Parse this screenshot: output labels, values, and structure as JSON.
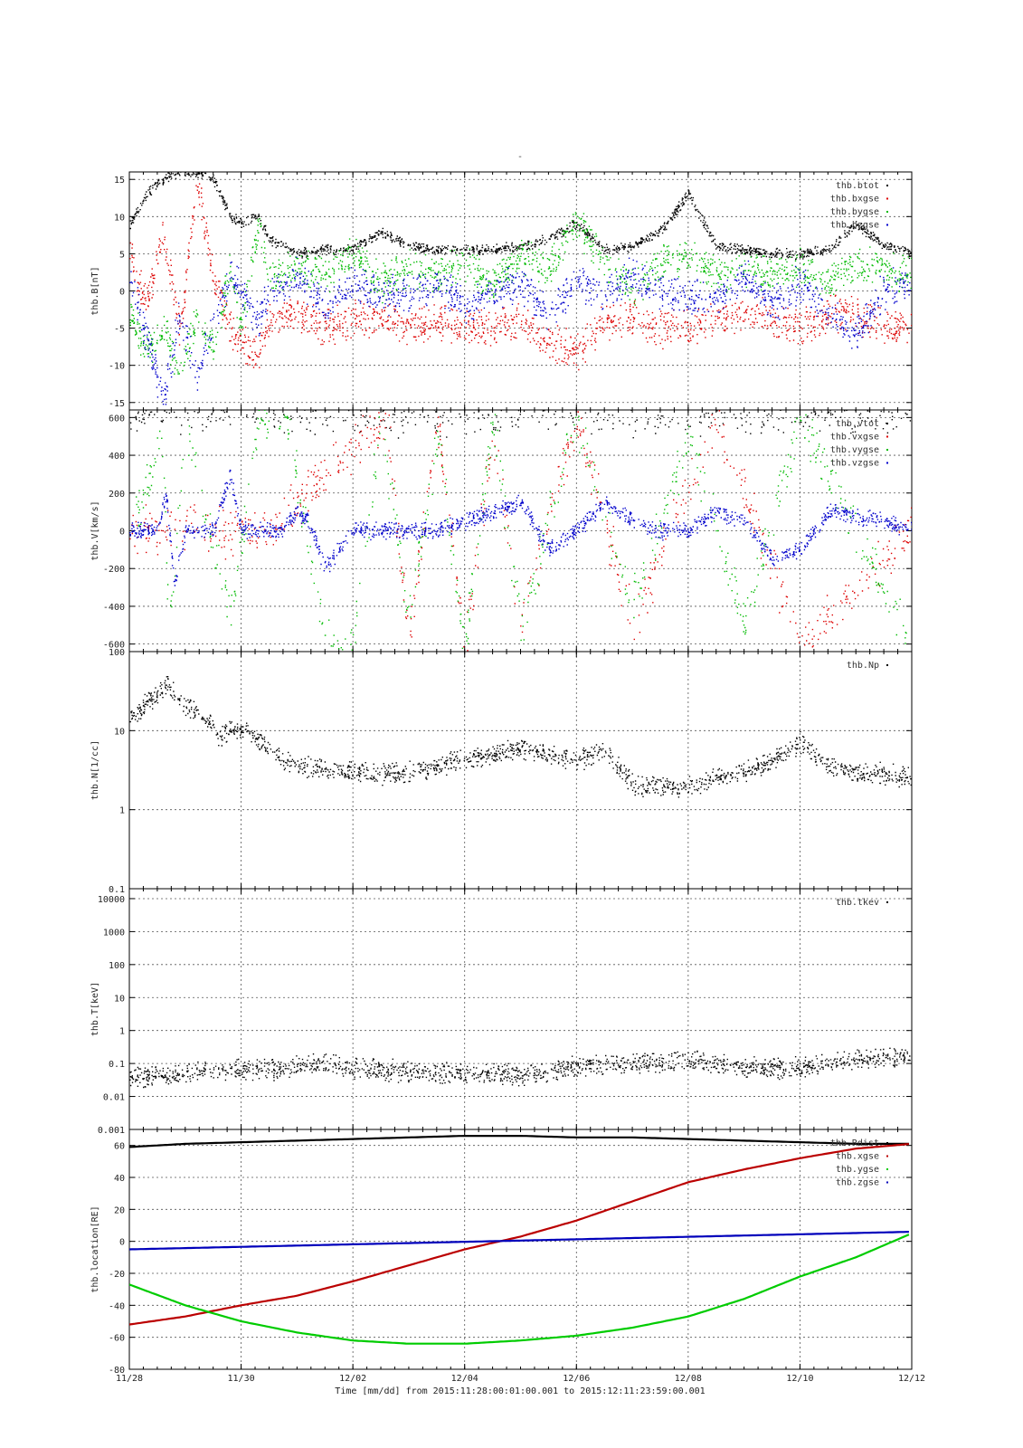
{
  "title": "-",
  "footer": "Time [mm/dd]  from 2015:11:28:00:01:00.001  to  2015:12:11:23:59:00.001",
  "x_ticks": [
    "11/28",
    "11/30",
    "12/02",
    "12/04",
    "12/06",
    "12/08",
    "12/10",
    "12/12"
  ],
  "chart_data": [
    {
      "type": "scatter",
      "ylabel": "thb.B[nT]",
      "ylim": [
        -16,
        16
      ],
      "yticks": [
        "15",
        "10",
        "5",
        "0",
        "-5",
        "-10",
        "-15"
      ],
      "series": [
        {
          "name": "thb.btot",
          "color": "#000000",
          "x": [
            0,
            0.3,
            0.6,
            0.9,
            1.2,
            1.5,
            1.8,
            2,
            2.3,
            2.5,
            3,
            3.5,
            4,
            4.5,
            5,
            5.5,
            6,
            6.5,
            7,
            7.5,
            8,
            8.5,
            9,
            9.5,
            10,
            10.5,
            11,
            11.5,
            12,
            12.5,
            13,
            13.5,
            14
          ],
          "values": [
            9,
            13,
            15,
            16,
            16,
            15,
            10,
            9,
            10,
            7,
            5,
            5.5,
            5.5,
            8,
            6,
            5.5,
            5.5,
            5.5,
            6,
            7,
            9,
            5.5,
            6,
            8,
            13,
            6,
            5.5,
            5,
            5,
            5.5,
            9,
            6,
            5
          ]
        },
        {
          "name": "thb.bxgse",
          "color": "#dd0000",
          "x": [
            0,
            0.3,
            0.6,
            0.9,
            1.2,
            1.5,
            1.8,
            2,
            2.3,
            2.5,
            3,
            3.5,
            4,
            4.5,
            5,
            5.5,
            6,
            6.5,
            7,
            7.5,
            8,
            8.5,
            9,
            9.5,
            10,
            10.5,
            11,
            11.5,
            12,
            12.5,
            13,
            13.5,
            14
          ],
          "values": [
            5,
            -2,
            8,
            -6,
            15,
            2,
            -5,
            -7,
            -9,
            -4,
            -3,
            -5,
            -4,
            -4,
            -5,
            -4,
            -5,
            -5,
            -4,
            -7,
            -8,
            -4,
            -4,
            -5,
            -5,
            -4,
            -3,
            -4,
            -5,
            -3,
            -3,
            -5,
            -5
          ]
        },
        {
          "name": "thb.bygse",
          "color": "#00bb00",
          "x": [
            0,
            0.3,
            0.6,
            0.9,
            1.2,
            1.5,
            1.8,
            2,
            2.3,
            2.5,
            3,
            3.5,
            4,
            4.5,
            5,
            5.5,
            6,
            6.5,
            7,
            7.5,
            8,
            8.5,
            9,
            9.5,
            10,
            10.5,
            11,
            11.5,
            12,
            12.5,
            13,
            13.5,
            14
          ],
          "values": [
            -3,
            -8,
            -5,
            -11,
            -4,
            -8,
            3,
            -5,
            9,
            2,
            3,
            2,
            5,
            1,
            3,
            2,
            4,
            1,
            5,
            3,
            9,
            4,
            0,
            4,
            5,
            2,
            3,
            2,
            3,
            1,
            4,
            3,
            2
          ]
        },
        {
          "name": "thb.bzgse",
          "color": "#0000cc",
          "x": [
            0,
            0.3,
            0.6,
            0.9,
            1.2,
            1.5,
            1.8,
            2,
            2.3,
            2.5,
            3,
            3.5,
            4,
            4.5,
            5,
            5.5,
            6,
            6.5,
            7,
            7.5,
            8,
            8.5,
            9,
            9.5,
            10,
            10.5,
            11,
            11.5,
            12,
            12.5,
            13,
            13.5,
            14
          ],
          "values": [
            2,
            -6,
            -15,
            -3,
            -12,
            -4,
            2,
            0,
            -4,
            0,
            2,
            -2,
            1,
            -1,
            0,
            1,
            -2,
            0,
            1,
            -3,
            1,
            0,
            2,
            0,
            -1,
            -1,
            2,
            -2,
            1,
            -3,
            -6,
            0,
            1
          ]
        }
      ]
    },
    {
      "type": "scatter",
      "ylabel": "thb.V[km/s]",
      "ylim": [
        -640,
        640
      ],
      "yticks": [
        "600",
        "400",
        "200",
        "0",
        "-200",
        "-400",
        "-600"
      ],
      "series": [
        {
          "name": "thb.vtot",
          "color": "#000000",
          "x": [
            0,
            14
          ],
          "values": [
            640,
            640
          ]
        },
        {
          "name": "thb.vxgse",
          "color": "#dd0000",
          "x": [
            0,
            2.5,
            4.6,
            5,
            5.5,
            6,
            6.5,
            7,
            8,
            9,
            10.5,
            12,
            14
          ],
          "values": [
            0,
            0,
            600,
            -600,
            600,
            -600,
            500,
            -500,
            600,
            -500,
            600,
            -600,
            0
          ]
        },
        {
          "name": "thb.vygse",
          "color": "#00bb00",
          "x": [
            0,
            0.6,
            0.7,
            1,
            1.8,
            2.3,
            2.8,
            3.2,
            3.5,
            4,
            4.5,
            5,
            5.5,
            6,
            6.5,
            7,
            8,
            9,
            10,
            11,
            12,
            14
          ],
          "values": [
            0,
            500,
            -600,
            600,
            -500,
            600,
            600,
            -100,
            -600,
            -600,
            600,
            -500,
            500,
            -600,
            600,
            -500,
            600,
            -400,
            500,
            -500,
            600,
            -600
          ]
        },
        {
          "name": "thb.vzgse",
          "color": "#0000cc",
          "x": [
            0,
            0.5,
            0.65,
            0.8,
            1,
            1.5,
            1.8,
            2,
            2.7,
            3,
            3.2,
            3.5,
            4,
            4.5,
            5,
            5.5,
            6,
            6.5,
            7,
            7.5,
            8,
            8.5,
            9,
            9.5,
            10,
            10.5,
            11,
            11.5,
            12,
            12.5,
            13,
            13.5,
            14
          ],
          "values": [
            0,
            0,
            200,
            -300,
            0,
            0,
            300,
            0,
            0,
            100,
            50,
            -200,
            0,
            0,
            0,
            0,
            50,
            100,
            150,
            -100,
            0,
            150,
            50,
            0,
            0,
            100,
            50,
            -150,
            -100,
            100,
            80,
            50,
            0
          ]
        }
      ]
    },
    {
      "type": "scatter",
      "ylabel": "thb.N[1/cc]",
      "yscale": "log",
      "ylim": [
        0.1,
        100
      ],
      "yticks": [
        "100",
        "10",
        "1",
        "0.1"
      ],
      "series": [
        {
          "name": "thb.Np",
          "color": "#000000",
          "x": [
            0,
            0.5,
            0.7,
            1,
            1.5,
            1.6,
            1.8,
            2.1,
            2.8,
            3,
            3.5,
            4,
            4.5,
            5,
            5.5,
            6,
            6.5,
            7,
            7.5,
            8,
            8.5,
            9,
            9.5,
            10,
            10.5,
            11,
            11.5,
            12,
            12.5,
            13,
            13.5,
            14
          ],
          "values": [
            14,
            30,
            40,
            20,
            12,
            8,
            10,
            10,
            4,
            3.5,
            3.2,
            3,
            2.8,
            3,
            3.5,
            4.5,
            5,
            6,
            5,
            4,
            6,
            2,
            2,
            2,
            2.5,
            3,
            4,
            7,
            3.5,
            3,
            2.8,
            2.5
          ]
        }
      ]
    },
    {
      "type": "scatter",
      "ylabel": "thb.T[keV]",
      "yscale": "log",
      "ylim": [
        0.001,
        20000
      ],
      "yticks": [
        "10000",
        "1000",
        "100",
        "10",
        "1",
        "0.1",
        "0.01",
        "0.001"
      ],
      "series": [
        {
          "name": "thb.tkev",
          "color": "#000000",
          "x": [
            0,
            0.5,
            0.8,
            1.1,
            1.6,
            2,
            2.8,
            3,
            3.5,
            4,
            4.5,
            5,
            5.5,
            6,
            6.5,
            7,
            7.5,
            8,
            8.5,
            9,
            9.5,
            10,
            10.5,
            11,
            11.5,
            12,
            12.5,
            13,
            13.5,
            14
          ],
          "values": [
            0.04,
            0.04,
            0.04,
            0.05,
            0.06,
            0.065,
            0.07,
            0.08,
            0.1,
            0.07,
            0.06,
            0.06,
            0.055,
            0.05,
            0.05,
            0.045,
            0.06,
            0.08,
            0.1,
            0.1,
            0.11,
            0.12,
            0.1,
            0.08,
            0.07,
            0.07,
            0.1,
            0.13,
            0.15,
            0.16
          ]
        }
      ]
    },
    {
      "type": "line",
      "ylabel": "thb.location[RE]",
      "ylim": [
        -80,
        70
      ],
      "yticks": [
        "60",
        "40",
        "20",
        "0",
        "-20",
        "-40",
        "-60",
        "-80"
      ],
      "series": [
        {
          "name": "thb.Rdist",
          "color": "#000000",
          "x": [
            0,
            1,
            2,
            3,
            4,
            5,
            6,
            7,
            8,
            9,
            10,
            11,
            12,
            13,
            14
          ],
          "values": [
            59,
            61,
            62,
            63,
            64,
            65,
            66,
            66,
            65,
            65,
            64,
            63,
            62,
            61,
            61
          ]
        },
        {
          "name": "thb.xgse",
          "color": "#bb0000",
          "x": [
            0,
            1,
            2,
            3,
            4,
            5,
            6,
            7,
            8,
            9,
            10,
            11,
            12,
            13,
            14
          ],
          "values": [
            -52,
            -47,
            -40,
            -34,
            -25,
            -15,
            -5,
            3,
            13,
            25,
            37,
            45,
            52,
            58,
            61
          ]
        },
        {
          "name": "thb.ygse",
          "color": "#00cc00",
          "x": [
            0,
            1,
            2,
            3,
            4,
            5,
            6,
            7,
            8,
            9,
            10,
            11,
            12,
            13,
            14
          ],
          "values": [
            -27,
            -40,
            -50,
            -57,
            -62,
            -64,
            -64,
            -62,
            -59,
            -54,
            -47,
            -36,
            -22,
            -10,
            5
          ]
        },
        {
          "name": "thb.zgse",
          "color": "#0000bb",
          "x": [
            0,
            14
          ],
          "values": [
            -5,
            6
          ]
        }
      ]
    }
  ]
}
